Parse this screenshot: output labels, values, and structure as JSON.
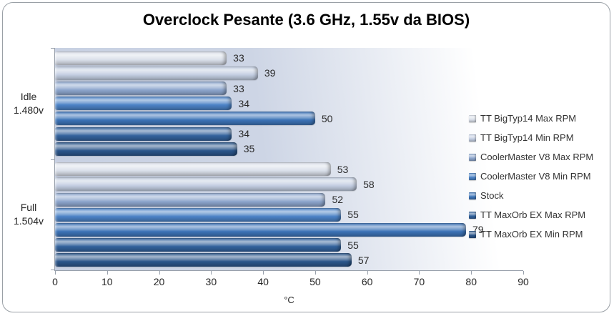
{
  "window": {
    "background": "#ffffff",
    "frame_border_color": "#9aa0a6"
  },
  "chart_data": {
    "type": "bar",
    "orientation": "horizontal",
    "title": "Overclock Pesante (3.6 GHz, 1.55v da BIOS)",
    "xlabel": "°C",
    "ylabel": "",
    "xlim": [
      0,
      90
    ],
    "xticks": [
      0,
      10,
      20,
      30,
      40,
      50,
      60,
      70,
      80,
      90
    ],
    "grid": false,
    "data_labels": true,
    "legend_position": "right",
    "plot_bg_gradient": {
      "left": "#c7d0e2",
      "mid": "#cdd5e5",
      "right": "#ffffff"
    },
    "axis_color": "#98a0ab",
    "label_color": "#2b2b2b",
    "categories": [
      {
        "lines": [
          "Idle",
          "1.480v"
        ]
      },
      {
        "lines": [
          "Full",
          "1.504v"
        ]
      }
    ],
    "series": [
      {
        "name": "TT BigTyp14 Max RPM",
        "color": "#d9dfe9",
        "values": [
          33,
          53
        ]
      },
      {
        "name": "TT BigTyp14 Min RPM",
        "color": "#c2cde1",
        "values": [
          39,
          58
        ]
      },
      {
        "name": "CoolerMaster V8 Max RPM",
        "color": "#8da6cd",
        "values": [
          33,
          52
        ]
      },
      {
        "name": "CoolerMaster V8 Min RPM",
        "color": "#4b82c6",
        "values": [
          34,
          55
        ]
      },
      {
        "name": "Stock",
        "color": "#3c73b7",
        "values": [
          50,
          79
        ]
      },
      {
        "name": "TT MaxOrb EX Max RPM",
        "color": "#32629c",
        "values": [
          34,
          55
        ]
      },
      {
        "name": "TT MaxOrb EX Min RPM",
        "color": "#2b568b",
        "values": [
          35,
          57
        ]
      }
    ]
  }
}
